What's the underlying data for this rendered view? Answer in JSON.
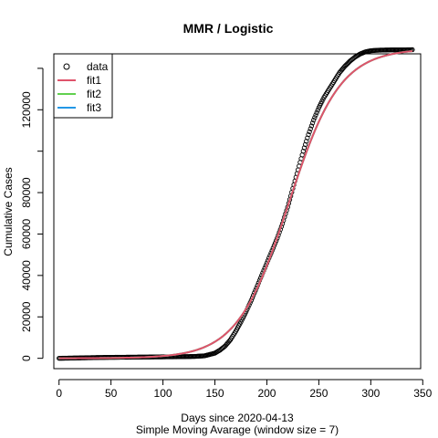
{
  "chart_data": {
    "type": "scatter",
    "title": "MMR / Logistic",
    "xlabel": "Days since 2020-04-13",
    "sublabel": "Simple Moving Avarage (window size = 7)",
    "ylabel": "Cumulative Cases",
    "xlim": [
      -5,
      348
    ],
    "ylim": [
      -5000,
      147000
    ],
    "x_ticks": [
      0,
      50,
      100,
      150,
      200,
      250,
      300,
      350
    ],
    "x_tick_labels": [
      "0",
      "50",
      "100",
      "150",
      "200",
      "250",
      "300",
      "350"
    ],
    "y_ticks": [
      0,
      20000,
      40000,
      60000,
      80000,
      120000
    ],
    "y_tick_labels": [
      "0",
      "20000",
      "40000",
      "60000",
      "80000",
      "120000"
    ],
    "y_minor_ticks": [
      100000,
      140000
    ],
    "data_series": {
      "name": "data",
      "x": [
        0,
        20,
        40,
        60,
        80,
        100,
        110,
        120,
        130,
        140,
        150,
        155,
        160,
        165,
        170,
        175,
        180,
        185,
        190,
        195,
        200,
        205,
        210,
        215,
        220,
        225,
        230,
        235,
        240,
        245,
        250,
        255,
        260,
        265,
        270,
        275,
        280,
        285,
        290,
        295,
        300,
        305,
        310,
        320,
        330,
        340
      ],
      "y": [
        0,
        200,
        400,
        500,
        600,
        700,
        750,
        800,
        900,
        1200,
        2500,
        4000,
        6000,
        9000,
        13000,
        17500,
        22500,
        28000,
        34000,
        40000,
        46000,
        52000,
        58000,
        65000,
        73000,
        82000,
        91000,
        100000,
        108000,
        115000,
        121000,
        126000,
        130000,
        134000,
        138000,
        141000,
        143500,
        145500,
        147000,
        148000,
        148500,
        148700,
        148800,
        148900,
        148900,
        149000
      ]
    },
    "series": [
      {
        "name": "fit1",
        "color": "#DF536B",
        "logistic": {
          "K": 149500,
          "r": 0.0405,
          "t0": 221
        }
      },
      {
        "name": "fit2",
        "color": "#61D04F",
        "logistic": {
          "K": 149500,
          "r": 0.0405,
          "t0": 221
        }
      },
      {
        "name": "fit3",
        "color": "#2297E6",
        "logistic": {
          "K": 149500,
          "r": 0.0405,
          "t0": 221
        }
      }
    ],
    "legend": {
      "position": "top-left",
      "entries": [
        {
          "label": "data",
          "symbol": "circle",
          "color": "#000000"
        },
        {
          "label": "fit1",
          "symbol": "line",
          "color": "#DF536B"
        },
        {
          "label": "fit2",
          "symbol": "line",
          "color": "#61D04F"
        },
        {
          "label": "fit3",
          "symbol": "line",
          "color": "#2297E6"
        }
      ]
    }
  }
}
